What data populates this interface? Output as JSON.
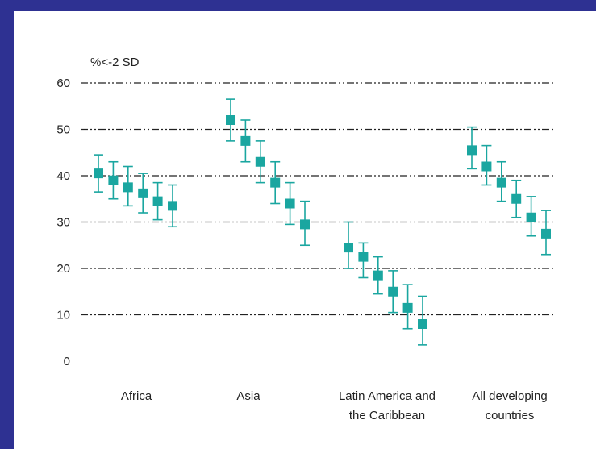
{
  "chart_data": {
    "type": "scatter",
    "ylabel": "%<-2 SD",
    "ylim": [
      0,
      60
    ],
    "yticks": [
      0,
      10,
      20,
      30,
      40,
      50,
      60
    ],
    "grid": true,
    "marker_color": "#1aa6a0",
    "grid_color": "#222222",
    "categories": [
      [
        "Africa"
      ],
      [
        "Asia"
      ],
      [
        "Latin America and",
        "the Caribbean"
      ],
      [
        "All developing",
        "countries"
      ]
    ],
    "groups": [
      {
        "category": "Africa",
        "points": [
          {
            "value": 40.5,
            "low": 36.5,
            "high": 44.5
          },
          {
            "value": 39.0,
            "low": 35.0,
            "high": 43.0
          },
          {
            "value": 37.5,
            "low": 33.5,
            "high": 42.0
          },
          {
            "value": 36.2,
            "low": 32.0,
            "high": 40.5
          },
          {
            "value": 34.5,
            "low": 30.5,
            "high": 38.5
          },
          {
            "value": 33.5,
            "low": 29.0,
            "high": 38.0
          }
        ]
      },
      {
        "category": "Asia",
        "points": [
          {
            "value": 52.0,
            "low": 47.5,
            "high": 56.5
          },
          {
            "value": 47.5,
            "low": 43.0,
            "high": 52.0
          },
          {
            "value": 43.0,
            "low": 38.5,
            "high": 47.5
          },
          {
            "value": 38.5,
            "low": 34.0,
            "high": 43.0
          },
          {
            "value": 34.0,
            "low": 29.5,
            "high": 38.5
          },
          {
            "value": 29.5,
            "low": 25.0,
            "high": 34.5
          }
        ]
      },
      {
        "category": "Latin America and the Caribbean",
        "points": [
          {
            "value": 24.5,
            "low": 20.0,
            "high": 30.0
          },
          {
            "value": 22.5,
            "low": 18.0,
            "high": 25.5
          },
          {
            "value": 18.5,
            "low": 14.5,
            "high": 22.5
          },
          {
            "value": 15.0,
            "low": 10.5,
            "high": 19.5
          },
          {
            "value": 11.5,
            "low": 7.0,
            "high": 16.5
          },
          {
            "value": 8.0,
            "low": 3.5,
            "high": 14.0
          }
        ]
      },
      {
        "category": "All developing countries",
        "points": [
          {
            "value": 45.5,
            "low": 41.5,
            "high": 50.5
          },
          {
            "value": 42.0,
            "low": 38.0,
            "high": 46.5
          },
          {
            "value": 38.5,
            "low": 34.5,
            "high": 43.0
          },
          {
            "value": 35.0,
            "low": 31.0,
            "high": 39.0
          },
          {
            "value": 31.0,
            "low": 27.0,
            "high": 35.5
          },
          {
            "value": 27.5,
            "low": 23.0,
            "high": 32.5
          }
        ]
      }
    ]
  }
}
